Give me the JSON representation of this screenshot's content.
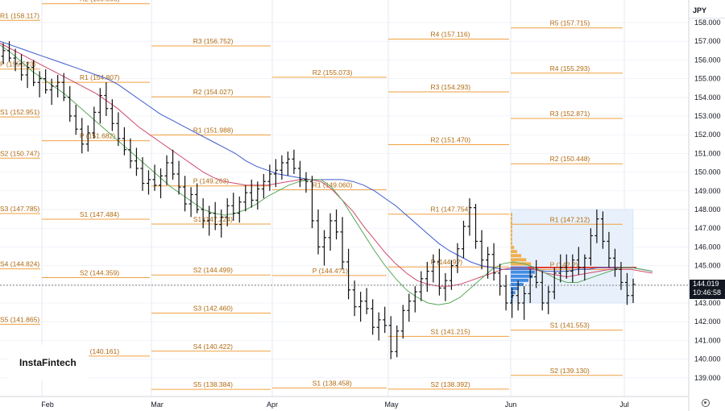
{
  "header": {
    "currency": "JPY"
  },
  "logo": {
    "text": "InstaFintech"
  },
  "last_price": {
    "value": "144.019",
    "time": "10:46:58"
  },
  "chart_data": {
    "type": "candlestick",
    "instrument_currency": "JPY",
    "price_axis": {
      "min": 138.5,
      "max": 158.5,
      "ticks": [
        139,
        140,
        141,
        142,
        143,
        144,
        145,
        146,
        147,
        148,
        149,
        150,
        151,
        152,
        153,
        154,
        155,
        156,
        157,
        158
      ],
      "tick_labels": [
        "139.000",
        "140.000",
        "141.000",
        "142.000",
        "143.000",
        "144.000",
        "145.000",
        "146.000",
        "147.000",
        "148.000",
        "149.000",
        "150.000",
        "151.000",
        "152.000",
        "153.000",
        "154.000",
        "155.000",
        "156.000",
        "157.000",
        "158.000"
      ]
    },
    "time_axis": {
      "labels": [
        "Feb",
        "Mar",
        "Apr",
        "May",
        "Jun",
        "Jul"
      ]
    },
    "pivot_periods": [
      {
        "month": "Jan",
        "levels": [
          {
            "label": "R1 (158.117)",
            "value": 158.117
          },
          {
            "label": "P (155.5?3)",
            "value": 155.513
          },
          {
            "label": "S1 (152.951)",
            "value": 152.951
          },
          {
            "label": "S2 (150.747)",
            "value": 150.747
          },
          {
            "label": "S3 (147.785)",
            "value": 147.785
          },
          {
            "label": "S4 (144.824)",
            "value": 144.824
          },
          {
            "label": "S5 (141.865)",
            "value": 141.865
          }
        ]
      },
      {
        "month": "Feb",
        "levels": [
          {
            "label": "R2 (159.005)",
            "value": 159.005
          },
          {
            "label": "R1 (154.807)",
            "value": 154.807
          },
          {
            "label": "P (151.682)",
            "value": 151.682
          },
          {
            "label": "S1 (147.484)",
            "value": 147.484
          },
          {
            "label": "S2 (144.359)",
            "value": 144.359
          },
          {
            "label": "S3 (140.161)",
            "value": 140.161
          }
        ]
      },
      {
        "month": "Mar",
        "levels": [
          {
            "label": "R3 (156.752)",
            "value": 156.752
          },
          {
            "label": "R2 (154.027)",
            "value": 154.027
          },
          {
            "label": "R1 (151.988)",
            "value": 151.988
          },
          {
            "label": "P (149.263)",
            "value": 149.263
          },
          {
            "label": "S1 (147.224)",
            "value": 147.224
          },
          {
            "label": "S2 (144.499)",
            "value": 144.499
          },
          {
            "label": "S3 (142.460)",
            "value": 142.46
          },
          {
            "label": "S4 (140.422)",
            "value": 140.422
          },
          {
            "label": "S5 (138.384)",
            "value": 138.384
          }
        ]
      },
      {
        "month": "Apr",
        "levels": [
          {
            "label": "R2 (155.073)",
            "value": 155.073
          },
          {
            "label": "R1 (149.060)",
            "value": 149.06
          },
          {
            "label": "P (144.4?1)",
            "value": 144.471
          },
          {
            "label": "S1 (138.458)",
            "value": 138.458
          }
        ]
      },
      {
        "month": "May",
        "levels": [
          {
            "label": "R4 (157.116)",
            "value": 157.116
          },
          {
            "label": "R3 (154.293)",
            "value": 154.293
          },
          {
            "label": "R2 (151.470)",
            "value": 151.47
          },
          {
            "label": "R1 (147.754)",
            "value": 147.754
          },
          {
            "label": "P (144.9?)",
            "value": 144.93
          },
          {
            "label": "S1 (141.215)",
            "value": 141.215
          },
          {
            "label": "S2 (138.392)",
            "value": 138.392
          }
        ]
      },
      {
        "month": "Jun",
        "levels": [
          {
            "label": "R5 (157.715)",
            "value": 157.715
          },
          {
            "label": "R4 (155.293)",
            "value": 155.293
          },
          {
            "label": "R3 (152.871)",
            "value": 152.871
          },
          {
            "label": "R2 (150.448)",
            "value": 150.448
          },
          {
            "label": "R1 (147.212)",
            "value": 147.212
          },
          {
            "label": "P (14?.?)",
            "value": 144.79
          },
          {
            "label": "S1 (141.553)",
            "value": 141.553
          },
          {
            "label": "S2 (139.130)",
            "value": 139.13
          }
        ]
      }
    ],
    "bars": [
      [
        156.2,
        156.9,
        155.8,
        156.5
      ],
      [
        156.5,
        157.0,
        155.9,
        156.1
      ],
      [
        156.1,
        156.6,
        155.4,
        155.8
      ],
      [
        155.8,
        156.3,
        154.9,
        155.2
      ],
      [
        155.2,
        155.9,
        154.5,
        155.6
      ],
      [
        155.6,
        156.0,
        154.6,
        154.8
      ],
      [
        154.8,
        155.4,
        154.0,
        155.0
      ],
      [
        155.0,
        155.5,
        154.2,
        154.4
      ],
      [
        154.4,
        155.0,
        153.6,
        154.6
      ],
      [
        154.6,
        155.2,
        154.0,
        154.8
      ],
      [
        154.8,
        155.3,
        153.8,
        154.0
      ],
      [
        154.0,
        154.6,
        152.7,
        153.0
      ],
      [
        153.0,
        153.6,
        152.0,
        152.3
      ],
      [
        152.3,
        152.9,
        151.0,
        151.5
      ],
      [
        151.5,
        152.5,
        151.1,
        152.1
      ],
      [
        152.1,
        153.5,
        151.8,
        153.2
      ],
      [
        153.2,
        154.5,
        152.6,
        154.1
      ],
      [
        154.1,
        154.8,
        153.0,
        153.4
      ],
      [
        153.4,
        153.9,
        152.2,
        152.6
      ],
      [
        152.6,
        153.2,
        151.4,
        151.8
      ],
      [
        151.8,
        152.4,
        150.9,
        151.2
      ],
      [
        151.2,
        151.8,
        150.2,
        150.6
      ],
      [
        150.6,
        151.3,
        149.8,
        150.2
      ],
      [
        150.2,
        150.8,
        149.0,
        149.4
      ],
      [
        149.4,
        150.1,
        148.8,
        149.6
      ],
      [
        149.6,
        150.4,
        149.0,
        149.3
      ],
      [
        149.3,
        150.2,
        148.6,
        149.8
      ],
      [
        149.8,
        150.9,
        149.3,
        150.5
      ],
      [
        150.5,
        151.2,
        149.6,
        149.9
      ],
      [
        149.9,
        150.6,
        148.8,
        149.2
      ],
      [
        149.2,
        149.8,
        147.9,
        148.3
      ],
      [
        148.3,
        149.2,
        147.6,
        148.8
      ],
      [
        148.8,
        149.4,
        147.8,
        148.0
      ],
      [
        148.0,
        148.6,
        147.0,
        147.4
      ],
      [
        147.4,
        148.2,
        146.6,
        147.8
      ],
      [
        147.8,
        148.4,
        146.9,
        147.2
      ],
      [
        147.2,
        148.0,
        146.5,
        147.6
      ],
      [
        147.6,
        148.6,
        147.1,
        148.2
      ],
      [
        148.2,
        148.9,
        147.4,
        147.8
      ],
      [
        147.8,
        148.7,
        147.3,
        148.4
      ],
      [
        148.4,
        149.3,
        147.9,
        148.9
      ],
      [
        148.9,
        149.6,
        148.1,
        148.5
      ],
      [
        148.5,
        149.5,
        148.0,
        149.1
      ],
      [
        149.1,
        149.9,
        148.6,
        149.5
      ],
      [
        149.5,
        150.4,
        149.0,
        149.9
      ],
      [
        149.9,
        150.7,
        149.2,
        150.1
      ],
      [
        150.1,
        150.9,
        149.6,
        150.5
      ],
      [
        150.5,
        151.1,
        149.8,
        150.7
      ],
      [
        150.7,
        151.2,
        149.9,
        150.2
      ],
      [
        150.2,
        150.6,
        149.2,
        149.6
      ],
      [
        149.6,
        150.0,
        148.9,
        149.5
      ],
      [
        149.5,
        149.8,
        147.0,
        147.4
      ],
      [
        147.4,
        148.0,
        145.6,
        146.0
      ],
      [
        146.0,
        146.9,
        145.0,
        146.5
      ],
      [
        146.5,
        147.8,
        145.8,
        147.4
      ],
      [
        147.4,
        148.0,
        146.4,
        146.8
      ],
      [
        146.8,
        147.6,
        144.8,
        145.2
      ],
      [
        145.2,
        145.9,
        143.2,
        143.7
      ],
      [
        143.7,
        144.2,
        142.3,
        142.8
      ],
      [
        142.8,
        143.6,
        142.0,
        143.1
      ],
      [
        143.1,
        143.8,
        142.4,
        142.7
      ],
      [
        142.7,
        143.2,
        141.3,
        141.7
      ],
      [
        141.7,
        142.5,
        141.0,
        142.1
      ],
      [
        142.1,
        142.8,
        141.4,
        141.8
      ],
      [
        141.8,
        142.3,
        140.0,
        140.4
      ],
      [
        140.4,
        141.8,
        140.1,
        141.5
      ],
      [
        141.5,
        142.9,
        141.1,
        142.6
      ],
      [
        142.6,
        143.5,
        142.0,
        143.1
      ],
      [
        143.1,
        143.9,
        142.5,
        143.6
      ],
      [
        143.6,
        144.7,
        143.1,
        144.3
      ],
      [
        144.3,
        145.2,
        143.6,
        144.7
      ],
      [
        144.7,
        145.6,
        144.1,
        145.2
      ],
      [
        145.2,
        145.9,
        143.4,
        143.8
      ],
      [
        143.8,
        144.6,
        143.1,
        144.2
      ],
      [
        144.2,
        145.3,
        143.7,
        145.0
      ],
      [
        145.0,
        146.2,
        144.6,
        145.9
      ],
      [
        145.9,
        147.4,
        145.4,
        147.1
      ],
      [
        147.1,
        148.6,
        146.6,
        148.1
      ],
      [
        148.1,
        148.3,
        145.9,
        146.3
      ],
      [
        146.3,
        146.9,
        144.8,
        145.3
      ],
      [
        145.3,
        146.0,
        144.3,
        145.6
      ],
      [
        145.6,
        146.2,
        144.2,
        144.6
      ],
      [
        144.6,
        145.1,
        143.4,
        143.9
      ],
      [
        143.9,
        144.5,
        142.6,
        143.0
      ],
      [
        143.0,
        143.8,
        142.2,
        143.4
      ],
      [
        143.4,
        144.2,
        142.6,
        143.0
      ],
      [
        143.0,
        143.9,
        142.1,
        143.5
      ],
      [
        143.5,
        144.8,
        143.0,
        144.4
      ],
      [
        144.4,
        145.3,
        143.8,
        144.1
      ],
      [
        144.1,
        144.7,
        142.6,
        143.0
      ],
      [
        143.0,
        143.9,
        142.4,
        143.6
      ],
      [
        143.6,
        144.9,
        143.2,
        144.6
      ],
      [
        144.6,
        145.6,
        144.1,
        144.9
      ],
      [
        144.9,
        145.6,
        144.3,
        144.7
      ],
      [
        144.7,
        145.6,
        144.1,
        145.3
      ],
      [
        145.3,
        146.0,
        144.5,
        144.9
      ],
      [
        144.9,
        145.6,
        144.2,
        145.4
      ],
      [
        145.4,
        147.0,
        145.0,
        146.6
      ],
      [
        146.6,
        148.0,
        146.2,
        147.5
      ],
      [
        147.5,
        147.9,
        145.9,
        146.3
      ],
      [
        146.3,
        146.8,
        144.9,
        145.4
      ],
      [
        145.4,
        145.9,
        144.4,
        144.8
      ],
      [
        144.8,
        145.2,
        143.7,
        144.1
      ],
      [
        144.1,
        144.6,
        142.9,
        143.4
      ],
      [
        143.4,
        144.3,
        143.0,
        144.0
      ]
    ],
    "moving_averages": [
      {
        "color": "#3d5ccf",
        "values": [
          157.0,
          156.8,
          156.6,
          156.4,
          156.2,
          156.0,
          155.8,
          155.6,
          155.4,
          155.2,
          155.0,
          154.7,
          154.3,
          153.9,
          153.5,
          153.1,
          152.8,
          152.5,
          152.2,
          151.9,
          151.6,
          151.3,
          151.0,
          150.6,
          150.3,
          150.1,
          149.9,
          149.8,
          149.7,
          149.6,
          149.6,
          149.6,
          149.6,
          149.5,
          149.3,
          149.0,
          148.6,
          148.2,
          147.7,
          147.2,
          146.7,
          146.2,
          145.8,
          145.5,
          145.2,
          145.0,
          144.9,
          144.8,
          144.8,
          144.8,
          144.8,
          144.7,
          144.7,
          144.7,
          144.8,
          144.8,
          144.9,
          144.9,
          144.9,
          144.9,
          144.8,
          144.7
        ]
      },
      {
        "color": "#d04a6a",
        "values": [
          156.9,
          156.6,
          156.3,
          156.0,
          155.7,
          155.4,
          155.1,
          154.8,
          154.5,
          154.2,
          153.8,
          153.4,
          152.9,
          152.4,
          152.0,
          151.6,
          151.2,
          150.8,
          150.4,
          150.0,
          149.7,
          149.5,
          149.4,
          149.3,
          149.3,
          149.3,
          149.4,
          149.5,
          149.6,
          149.6,
          149.5,
          149.1,
          148.5,
          147.9,
          147.1,
          146.4,
          145.7,
          145.1,
          144.6,
          144.2,
          144.0,
          143.9,
          143.9,
          144.0,
          144.2,
          144.4,
          144.6,
          144.8,
          144.9,
          144.9,
          144.8,
          144.6,
          144.5,
          144.4,
          144.5,
          144.6,
          144.7,
          144.8,
          144.8,
          144.8,
          144.7,
          144.6
        ]
      },
      {
        "color": "#5aa95a",
        "values": [
          156.8,
          156.4,
          155.9,
          155.4,
          155.0,
          154.6,
          154.2,
          153.7,
          153.2,
          152.7,
          152.2,
          151.7,
          151.2,
          150.7,
          150.2,
          149.7,
          149.2,
          148.8,
          148.4,
          148.0,
          147.8,
          147.7,
          147.8,
          148.0,
          148.3,
          148.7,
          149.0,
          149.3,
          149.5,
          149.6,
          149.6,
          149.2,
          148.5,
          147.6,
          146.7,
          145.8,
          145.0,
          144.3,
          143.7,
          143.3,
          143.0,
          142.9,
          143.0,
          143.3,
          143.8,
          144.3,
          144.8,
          145.1,
          145.2,
          145.1,
          144.9,
          144.6,
          144.3,
          144.1,
          144.1,
          144.3,
          144.5,
          144.7,
          144.9,
          144.9,
          144.8,
          144.7
        ]
      }
    ],
    "volume_profile": {
      "box": {
        "from": "Jun",
        "to": "Jul",
        "low": 143.0,
        "high": 148.0
      },
      "poc": 144.9
    }
  }
}
